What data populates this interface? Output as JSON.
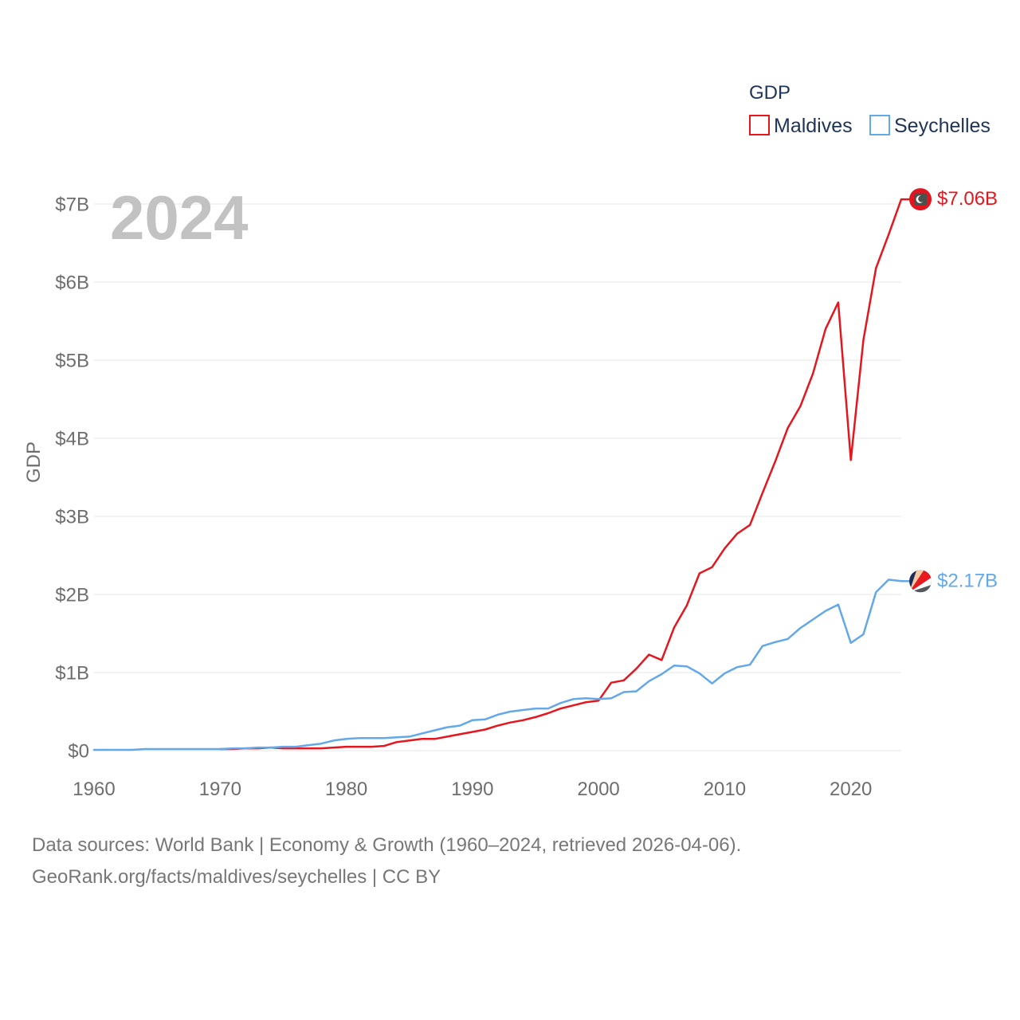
{
  "year_label": "2024",
  "footer": {
    "sources": "Data sources: World Bank | Economy & Growth (1960–2024, retrieved 2026-04-06).",
    "attribution": "GeoRank.org/facts/maldives/seychelles | CC BY"
  },
  "chart_data": {
    "type": "line",
    "title": "",
    "xlabel": "",
    "ylabel": "GDP",
    "xlim": [
      1960,
      2024
    ],
    "ylim": [
      0,
      7
    ],
    "grid": true,
    "legend": {
      "title": "GDP",
      "placement": "top-right"
    },
    "x_ticks": [
      1960,
      1970,
      1980,
      1990,
      2000,
      2010,
      2020
    ],
    "y_ticks": [
      {
        "value": 0,
        "label": "$0"
      },
      {
        "value": 1,
        "label": "$1B"
      },
      {
        "value": 2,
        "label": "$2B"
      },
      {
        "value": 3,
        "label": "$3B"
      },
      {
        "value": 4,
        "label": "$4B"
      },
      {
        "value": 5,
        "label": "$5B"
      },
      {
        "value": 6,
        "label": "$6B"
      },
      {
        "value": 7,
        "label": "$7B"
      }
    ],
    "series": [
      {
        "name": "Maldives",
        "color": "#e5161e",
        "icon": "maldives-flag-icon",
        "end_label": "$7.06B",
        "x": [
          1970,
          1971,
          1972,
          1973,
          1974,
          1975,
          1976,
          1977,
          1978,
          1979,
          1980,
          1981,
          1982,
          1983,
          1984,
          1985,
          1986,
          1987,
          1988,
          1989,
          1990,
          1991,
          1992,
          1993,
          1994,
          1995,
          1996,
          1997,
          1998,
          1999,
          2000,
          2001,
          2002,
          2003,
          2004,
          2005,
          2006,
          2007,
          2008,
          2009,
          2010,
          2011,
          2012,
          2013,
          2014,
          2015,
          2016,
          2017,
          2018,
          2019,
          2020,
          2021,
          2022,
          2023,
          2024
        ],
        "values": [
          0.02,
          0.02,
          0.03,
          0.03,
          0.04,
          0.03,
          0.03,
          0.03,
          0.03,
          0.04,
          0.05,
          0.05,
          0.05,
          0.06,
          0.11,
          0.13,
          0.15,
          0.15,
          0.18,
          0.21,
          0.24,
          0.27,
          0.32,
          0.36,
          0.39,
          0.43,
          0.48,
          0.54,
          0.58,
          0.62,
          0.64,
          0.87,
          0.9,
          1.05,
          1.23,
          1.16,
          1.58,
          1.86,
          2.27,
          2.35,
          2.59,
          2.78,
          2.89,
          3.3,
          3.7,
          4.13,
          4.41,
          4.83,
          5.4,
          5.74,
          3.72,
          5.26,
          6.18,
          6.61,
          7.06
        ]
      },
      {
        "name": "Seychelles",
        "color": "#63a8e8",
        "icon": "seychelles-flag-icon",
        "end_label": "$2.17B",
        "x": [
          1960,
          1961,
          1962,
          1963,
          1964,
          1965,
          1966,
          1967,
          1968,
          1969,
          1970,
          1971,
          1972,
          1973,
          1974,
          1975,
          1976,
          1977,
          1978,
          1979,
          1980,
          1981,
          1982,
          1983,
          1984,
          1985,
          1986,
          1987,
          1988,
          1989,
          1990,
          1991,
          1992,
          1993,
          1994,
          1995,
          1996,
          1997,
          1998,
          1999,
          2000,
          2001,
          2002,
          2003,
          2004,
          2005,
          2006,
          2007,
          2008,
          2009,
          2010,
          2011,
          2012,
          2013,
          2014,
          2015,
          2016,
          2017,
          2018,
          2019,
          2020,
          2021,
          2022,
          2023,
          2024
        ],
        "values": [
          0.01,
          0.01,
          0.01,
          0.01,
          0.02,
          0.02,
          0.02,
          0.02,
          0.02,
          0.02,
          0.02,
          0.03,
          0.03,
          0.04,
          0.04,
          0.05,
          0.05,
          0.07,
          0.09,
          0.13,
          0.15,
          0.16,
          0.16,
          0.16,
          0.17,
          0.18,
          0.22,
          0.26,
          0.3,
          0.32,
          0.39,
          0.4,
          0.46,
          0.5,
          0.52,
          0.54,
          0.54,
          0.61,
          0.66,
          0.67,
          0.66,
          0.67,
          0.75,
          0.76,
          0.89,
          0.98,
          1.09,
          1.08,
          0.99,
          0.86,
          0.99,
          1.07,
          1.1,
          1.34,
          1.39,
          1.43,
          1.57,
          1.68,
          1.79,
          1.87,
          1.38,
          1.49,
          2.03,
          2.19,
          2.17
        ]
      }
    ]
  }
}
